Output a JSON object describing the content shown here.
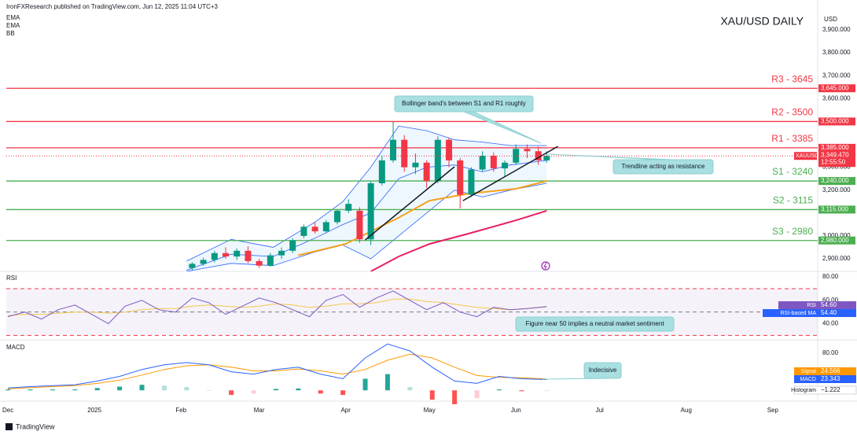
{
  "header": {
    "publisher": "IronFXResearch published on TradingView.com, Jun 12, 2025 11:04 UTC+3",
    "footer": "TradingView"
  },
  "chart_data": [
    {
      "type": "candlestick",
      "title": "XAU/USD DAILY",
      "ylabel": "USD",
      "indicators": [
        "EMA",
        "EMA",
        "BB"
      ],
      "xlim": [
        -0.6,
        290.1
      ],
      "xticks": [
        {
          "value": 0,
          "label": "Dec"
        },
        {
          "value": 31,
          "label": "2025"
        },
        {
          "value": 62,
          "label": "Feb"
        },
        {
          "value": 90,
          "label": "Mar"
        },
        {
          "value": 121,
          "label": "Apr"
        },
        {
          "value": 151,
          "label": "May"
        },
        {
          "value": 182,
          "label": "Jun"
        },
        {
          "value": 212,
          "label": "Jul"
        },
        {
          "value": 243,
          "label": "Aug"
        },
        {
          "value": 274,
          "label": "Sep"
        }
      ],
      "ylim": [
        2845,
        3962
      ],
      "yticks": [
        {
          "value": 3900,
          "label": "3,900.000"
        },
        {
          "value": 3800,
          "label": "3,800.000"
        },
        {
          "value": 3700,
          "label": "3,700.000"
        },
        {
          "value": 3600,
          "label": "3,600.000"
        },
        {
          "value": 3300,
          "label": "3,300.000"
        },
        {
          "value": 3200,
          "label": "3,200.000"
        },
        {
          "value": 3000,
          "label": "3,000.000"
        },
        {
          "value": 2900,
          "label": "2,900.000"
        }
      ],
      "up_color": "#089981",
      "down_color": "#f23645",
      "x": [
        66,
        70,
        74,
        78,
        82,
        86,
        90,
        94,
        98,
        102,
        106,
        110,
        114,
        118,
        122,
        126,
        130,
        134,
        138,
        142,
        146,
        150,
        154,
        158,
        162,
        166,
        170,
        174,
        178,
        182,
        186,
        190,
        193
      ],
      "open": [
        2860,
        2878,
        2895,
        2925,
        2910,
        2935,
        2890,
        2870,
        2915,
        2935,
        3000,
        3040,
        3020,
        3060,
        3110,
        3110,
        2985,
        3230,
        3330,
        3420,
        3300,
        3320,
        3240,
        3420,
        3330,
        3180,
        3290,
        3350,
        3295,
        3320,
        3380,
        3370,
        3330
      ],
      "high": [
        2885,
        2905,
        2935,
        2950,
        2945,
        2955,
        2900,
        2925,
        2950,
        2990,
        3050,
        3060,
        3070,
        3115,
        3160,
        3125,
        3240,
        3350,
        3500,
        3440,
        3360,
        3330,
        3435,
        3430,
        3340,
        3300,
        3370,
        3365,
        3330,
        3400,
        3400,
        3390,
        3370
      ],
      "low": [
        2850,
        2870,
        2885,
        2900,
        2895,
        2880,
        2860,
        2865,
        2900,
        2925,
        2990,
        3010,
        3015,
        3050,
        3100,
        2970,
        2960,
        3220,
        3320,
        3280,
        3270,
        3210,
        3230,
        3300,
        3120,
        3170,
        3280,
        3280,
        3260,
        3310,
        3340,
        3310,
        3320
      ],
      "close": [
        2878,
        2895,
        2925,
        2910,
        2935,
        2890,
        2870,
        2915,
        2935,
        2980,
        3040,
        3020,
        3060,
        3110,
        3140,
        2985,
        3230,
        3330,
        3420,
        3300,
        3320,
        3240,
        3420,
        3330,
        3180,
        3290,
        3350,
        3295,
        3320,
        3380,
        3370,
        3330,
        3350
      ],
      "ema": [
        {
          "color": "#f7a21b",
          "x": [
            104,
            121,
            140,
            151,
            165,
            182,
            193
          ],
          "values": [
            2915,
            2965,
            3080,
            3154,
            3185,
            3206,
            3240
          ]
        },
        {
          "color": "#e91e63",
          "x": [
            130,
            140,
            151,
            165,
            182,
            193
          ],
          "values": [
            2845,
            2910,
            2965,
            3010,
            3068,
            3110
          ]
        }
      ],
      "bb": {
        "color": "#2962ff",
        "fill": "rgba(33,150,243,0.08)",
        "x": [
          64,
          80,
          95,
          110,
          120,
          130,
          140,
          150,
          160,
          170,
          180,
          193
        ],
        "upper": [
          2890,
          2985,
          2950,
          3060,
          3150,
          3300,
          3480,
          3460,
          3420,
          3410,
          3395,
          3395
        ],
        "middle": [
          2850,
          2920,
          2910,
          2990,
          3050,
          3100,
          3250,
          3300,
          3310,
          3280,
          3310,
          3330
        ],
        "lower": [
          2845,
          2880,
          2870,
          2930,
          2960,
          2900,
          3000,
          3100,
          3200,
          3170,
          3200,
          3230
        ]
      },
      "trendlines": [
        {
          "x": [
            128,
            160
          ],
          "values": [
            2982,
            3302
          ]
        },
        {
          "x": [
            163,
            197
          ],
          "values": [
            3154,
            3391
          ]
        }
      ],
      "levels": [
        {
          "name": "R3 - 3645",
          "value": 3645,
          "label": "3,645.000",
          "color": "#f23645"
        },
        {
          "name": "R2 - 3500",
          "value": 3500,
          "label": "3,500.000",
          "color": "#f23645"
        },
        {
          "name": "R1 - 3385",
          "value": 3385,
          "label": "3,385.000",
          "color": "#f23645"
        },
        {
          "name": "S1 - 3240",
          "value": 3240,
          "label": "3,240.000",
          "color": "#4caf50"
        },
        {
          "name": "S2 - 3115",
          "value": 3115,
          "label": "3,115.000",
          "color": "#4caf50"
        },
        {
          "name": "S3 - 2980",
          "value": 2980,
          "label": "2,980.000",
          "color": "#4caf50"
        }
      ],
      "last_price": {
        "symbol": "XAUUSD",
        "value": 3349.47,
        "label": "3,349.470",
        "countdown": "12:55:50"
      },
      "annotations": [
        "Bollinger band's  between S1 and R1 roughly",
        "Trendline acting as resistance"
      ]
    },
    {
      "type": "line",
      "name": "RSI",
      "ylim": [
        26.2,
        84.8
      ],
      "yticks": [
        {
          "value": 80,
          "label": "80.00"
        },
        {
          "value": 60,
          "label": "60.00"
        },
        {
          "value": 40,
          "label": "40.00"
        }
      ],
      "levels": [
        70,
        50,
        30
      ],
      "series": [
        {
          "name": "RSI",
          "color": "#7e57c2",
          "x": [
            0,
            6,
            12,
            18,
            24,
            30,
            36,
            42,
            48,
            54,
            60,
            66,
            72,
            78,
            84,
            90,
            96,
            102,
            108,
            114,
            120,
            126,
            132,
            138,
            144,
            150,
            156,
            162,
            168,
            174,
            180,
            186,
            193
          ],
          "values": [
            46,
            50,
            44,
            52,
            56,
            48,
            40,
            55,
            60,
            52,
            50,
            62,
            58,
            48,
            55,
            62,
            58,
            52,
            46,
            60,
            65,
            54,
            62,
            68,
            60,
            52,
            58,
            50,
            46,
            54,
            52,
            53,
            54.6
          ],
          "value_label": "54.60"
        },
        {
          "name": "RSI-based MA",
          "color": "#f2c94c",
          "x": [
            0,
            6,
            12,
            18,
            24,
            30,
            36,
            42,
            48,
            54,
            60,
            66,
            72,
            78,
            84,
            90,
            96,
            102,
            108,
            114,
            120,
            126,
            132,
            138,
            144,
            150,
            156,
            162,
            168,
            174,
            180,
            186,
            193
          ],
          "values": [
            47,
            48,
            48,
            49,
            50,
            50,
            49,
            50,
            52,
            53,
            53,
            55,
            56,
            55,
            54,
            55,
            57,
            56,
            54,
            55,
            57,
            57,
            58,
            61,
            61,
            59,
            58,
            56,
            54,
            53,
            52,
            53,
            54.4
          ],
          "value_label": "54.40"
        }
      ],
      "annotations": [
        "Figure near 50  implies a neutral market sentiment"
      ]
    },
    {
      "type": "macd",
      "name": "MACD",
      "ylim": [
        -23.4,
        109
      ],
      "yticks": [
        {
          "value": 80,
          "label": "80.00"
        }
      ],
      "x": [
        0,
        8,
        16,
        24,
        32,
        40,
        48,
        56,
        64,
        72,
        80,
        88,
        96,
        104,
        112,
        120,
        128,
        136,
        144,
        152,
        160,
        168,
        176,
        184,
        193
      ],
      "series": [
        {
          "name": "Signal",
          "color": "#ff9800",
          "values": [
            3,
            6,
            8,
            10,
            15,
            22,
            33,
            45,
            53,
            55,
            50,
            42,
            42,
            46,
            42,
            35,
            45,
            65,
            78,
            70,
            50,
            32,
            28,
            27,
            24.566
          ],
          "value_label": "24.566"
        },
        {
          "name": "MACD",
          "color": "#2962ff",
          "values": [
            5,
            8,
            10,
            12,
            20,
            30,
            45,
            55,
            60,
            55,
            40,
            35,
            45,
            50,
            35,
            25,
            70,
            100,
            85,
            50,
            20,
            15,
            30,
            25,
            23.343
          ],
          "value_label": "23.343"
        },
        {
          "name": "Histogram",
          "color": "#26a69a",
          "negative_color": "#ff5252",
          "values": [
            2,
            2,
            2,
            2,
            5,
            8,
            12,
            10,
            7,
            0,
            -10,
            -7,
            3,
            4,
            -7,
            -10,
            25,
            35,
            7,
            -20,
            -30,
            -17,
            2,
            -2,
            -1.222
          ],
          "value_label": "−1.222"
        }
      ],
      "annotations": [
        "Indecisive"
      ]
    }
  ]
}
